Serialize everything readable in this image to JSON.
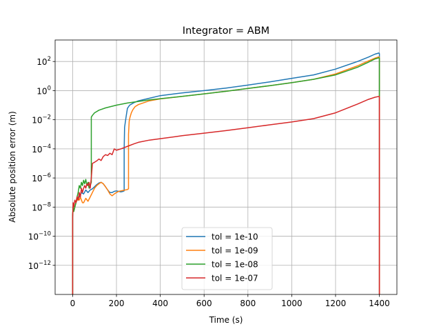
{
  "chart_data": {
    "type": "line",
    "title": "Integrator = ABM",
    "xlabel": "Time (s)",
    "ylabel": "Absolute position error (m)",
    "xlim": [
      -80,
      1480
    ],
    "ylim": [
      1e-14,
      3000
    ],
    "yscale": "log",
    "grid": true,
    "legend": "lower center",
    "x_ticks": [
      0,
      200,
      400,
      600,
      800,
      1000,
      1200,
      1400
    ],
    "x_tick_labels": [
      "0",
      "200",
      "400",
      "600",
      "800",
      "1000",
      "1200",
      "1400"
    ],
    "y_ticks": [
      1e-12,
      1e-10,
      1e-08,
      1e-06,
      0.0001,
      0.01,
      1,
      100
    ],
    "y_tick_bases": [
      "10",
      "10",
      "10",
      "10",
      "10",
      "10",
      "10",
      "10"
    ],
    "y_tick_exponents": [
      "−12",
      "−10",
      "−8",
      "−6",
      "−4",
      "−2",
      "0",
      "2"
    ],
    "series": [
      {
        "name": "tol = 1e-10",
        "color": "#1f77b4",
        "x": [
          0,
          0,
          2,
          5,
          10,
          15,
          20,
          30,
          40,
          50,
          60,
          70,
          80,
          90,
          100,
          110,
          120,
          130,
          140,
          150,
          160,
          170,
          180,
          190,
          200,
          210,
          220,
          230,
          235,
          235,
          237,
          240,
          245,
          250,
          260,
          280,
          300,
          350,
          400,
          500,
          600,
          700,
          800,
          900,
          1000,
          1100,
          1200,
          1300,
          1350,
          1380,
          1398,
          1400,
          1400
        ],
        "y": [
          1e-14,
          2e-09,
          1e-08,
          5e-09,
          1e-08,
          2e-08,
          3e-08,
          5e-08,
          1e-07,
          8e-08,
          1.5e-07,
          1e-07,
          1.5e-07,
          1.8e-07,
          2.5e-07,
          3.5e-07,
          4.5e-07,
          5e-07,
          4e-07,
          2.5e-07,
          1.5e-07,
          1e-07,
          1e-07,
          1.2e-07,
          1.3e-07,
          1.2e-07,
          1.1e-07,
          1.2e-07,
          1.3e-07,
          0.0001,
          0.003,
          0.006,
          0.02,
          0.06,
          0.1,
          0.15,
          0.2,
          0.3,
          0.45,
          0.7,
          1.0,
          1.5,
          2.4,
          4,
          7,
          12,
          30,
          100,
          200,
          320,
          380,
          350,
          1e-14
        ]
      },
      {
        "name": "tol = 1e-09",
        "color": "#ff7f0e",
        "x": [
          0,
          0,
          2,
          5,
          10,
          15,
          20,
          25,
          30,
          35,
          40,
          45,
          50,
          60,
          70,
          80,
          90,
          100,
          110,
          120,
          130,
          140,
          150,
          160,
          170,
          180,
          190,
          200,
          210,
          220,
          230,
          240,
          250,
          255,
          255,
          258,
          262,
          268,
          275,
          285,
          300,
          350,
          400,
          500,
          600,
          700,
          800,
          900,
          1000,
          1100,
          1200,
          1300,
          1350,
          1380,
          1398,
          1400,
          1400
        ],
        "y": [
          1e-14,
          3e-09,
          1e-08,
          5e-09,
          1e-08,
          2e-08,
          3e-08,
          5e-08,
          3e-08,
          5e-08,
          3e-08,
          2e-08,
          2e-08,
          4e-08,
          2.5e-08,
          5e-08,
          1e-07,
          2e-07,
          3e-07,
          4e-07,
          5e-07,
          4e-07,
          2.5e-07,
          1.5e-07,
          8e-08,
          6e-08,
          8e-08,
          1e-07,
          1.2e-07,
          1.3e-07,
          1.4e-07,
          1.5e-07,
          1.6e-07,
          1.8e-07,
          0.001,
          0.008,
          0.015,
          0.03,
          0.05,
          0.08,
          0.11,
          0.2,
          0.27,
          0.4,
          0.6,
          0.9,
          1.4,
          2.2,
          3.5,
          6,
          14,
          50,
          110,
          170,
          210,
          200,
          1e-14
        ]
      },
      {
        "name": "tol = 1e-08",
        "color": "#2ca02c",
        "x": [
          0,
          0,
          2,
          5,
          10,
          15,
          20,
          25,
          30,
          35,
          40,
          45,
          50,
          55,
          60,
          65,
          70,
          75,
          80,
          85,
          85,
          90,
          100,
          120,
          150,
          200,
          250,
          300,
          350,
          400,
          500,
          600,
          700,
          800,
          900,
          1000,
          1100,
          1200,
          1300,
          1350,
          1380,
          1398,
          1400,
          1400
        ],
        "y": [
          1e-14,
          3e-09,
          1e-08,
          5e-09,
          1e-08,
          2e-08,
          5e-08,
          1e-07,
          3e-07,
          2e-07,
          5e-07,
          3e-07,
          7e-07,
          4e-07,
          8e-07,
          3e-07,
          5e-07,
          2e-07,
          3e-07,
          5e-07,
          0.015,
          0.02,
          0.03,
          0.045,
          0.065,
          0.1,
          0.14,
          0.18,
          0.23,
          0.28,
          0.4,
          0.6,
          0.9,
          1.4,
          2.2,
          3.5,
          6,
          12,
          40,
          90,
          150,
          180,
          170,
          0.4
        ]
      },
      {
        "name": "tol = 1e-07",
        "color": "#d62728",
        "x": [
          0,
          0,
          2,
          5,
          10,
          15,
          20,
          25,
          30,
          35,
          40,
          45,
          50,
          55,
          60,
          65,
          70,
          75,
          80,
          85,
          90,
          100,
          110,
          120,
          130,
          140,
          150,
          160,
          170,
          180,
          190,
          200,
          220,
          240,
          260,
          280,
          300,
          350,
          400,
          500,
          600,
          700,
          800,
          900,
          1000,
          1100,
          1200,
          1300,
          1350,
          1380,
          1398,
          1400,
          1400
        ],
        "y": [
          1e-14,
          2e-09,
          2e-08,
          1e-08,
          3e-08,
          2e-08,
          5e-08,
          3e-08,
          1e-07,
          5e-08,
          2e-07,
          1e-07,
          2e-07,
          3e-07,
          2e-07,
          4e-07,
          3e-07,
          5e-07,
          2e-07,
          1e-06,
          1e-05,
          1.2e-05,
          1.5e-05,
          2e-05,
          1.6e-05,
          3e-05,
          4e-05,
          3.5e-05,
          5e-05,
          4e-05,
          0.0001,
          8e-05,
          0.0001,
          0.00013,
          0.00017,
          0.00022,
          0.00028,
          0.0004,
          0.0005,
          0.0008,
          0.0012,
          0.0018,
          0.0028,
          0.0045,
          0.007,
          0.012,
          0.03,
          0.12,
          0.25,
          0.35,
          0.4,
          0.38,
          1e-14
        ]
      }
    ]
  }
}
